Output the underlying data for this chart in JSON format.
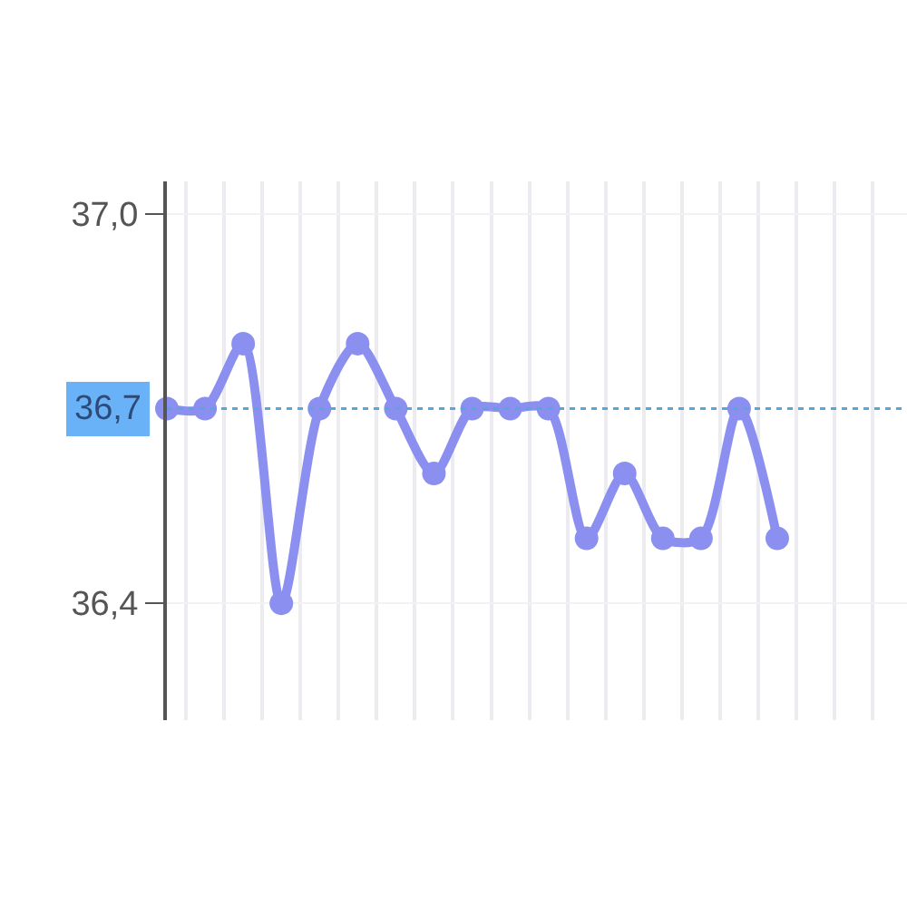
{
  "chart_data": {
    "type": "line",
    "categories": [
      null,
      null,
      null,
      null,
      null,
      null,
      null,
      null,
      null,
      null,
      null,
      null,
      null,
      null,
      null,
      null,
      null,
      null,
      null,
      null
    ],
    "series": [
      {
        "color": "#8b8ff0",
        "values": [
          36.7,
          36.7,
          36.8,
          36.4,
          36.7,
          36.8,
          36.7,
          36.6,
          36.7,
          36.7,
          36.7,
          36.5,
          36.6,
          36.5,
          36.5,
          36.7,
          36.5,
          null,
          null,
          null
        ]
      }
    ],
    "ylim": [
      36.22,
      37.05
    ],
    "yticks": [
      {
        "value": 37.0,
        "label": "37,0"
      },
      {
        "value": 36.4,
        "label": "36,4"
      }
    ],
    "ref_lines": [
      {
        "axis": "y",
        "value": 36.7,
        "label": "36,7",
        "color": "#5aa6d6",
        "line_style": "dotted"
      }
    ],
    "grid": true,
    "marker": "circle",
    "line_style": "solid",
    "tick_labels": "y"
  }
}
